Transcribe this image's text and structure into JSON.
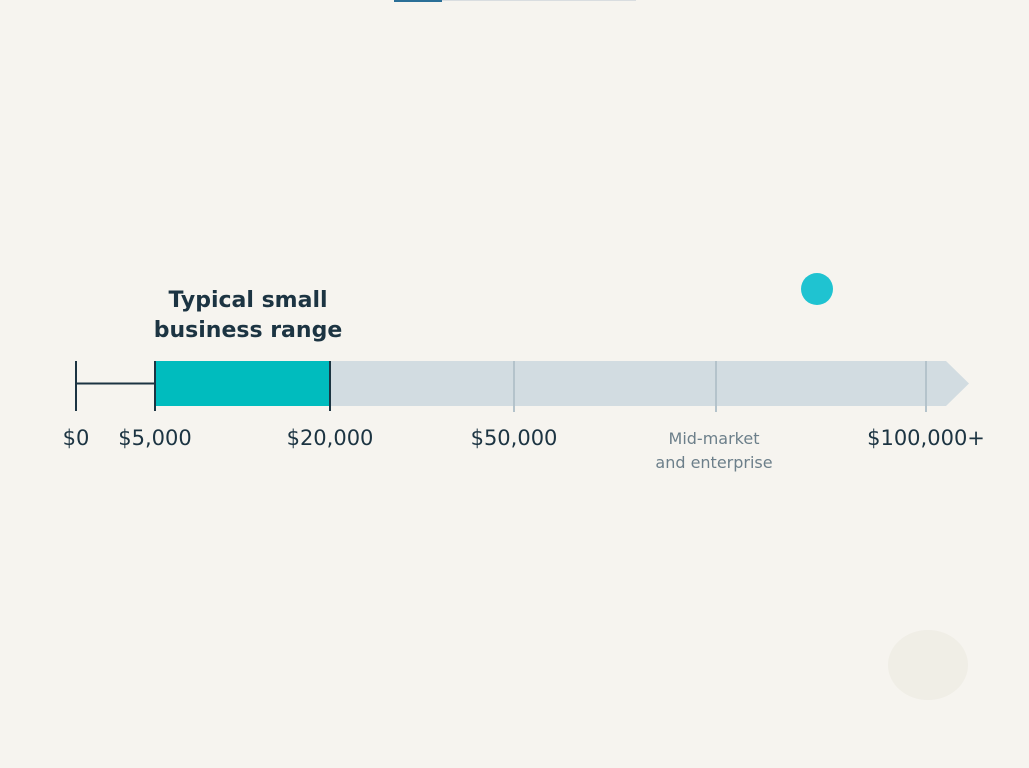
{
  "diagram": {
    "highlight_label": "Typical small\nbusiness range",
    "segment_note": "Mid-market\nand enterprise",
    "ticks": [
      {
        "value": 0,
        "label": "$0"
      },
      {
        "value": 5000,
        "label": "$5,000"
      },
      {
        "value": 20000,
        "label": "$20,000"
      },
      {
        "value": 50000,
        "label": "$50,000"
      },
      {
        "value": 100000,
        "label": "$100,000+"
      }
    ],
    "highlight_range": [
      5000,
      20000
    ],
    "colors": {
      "background": "#f6f4ef",
      "highlight": "#00bcbe",
      "track": "#d2dce1",
      "track_tick": "#b4c3cb",
      "bracket": "#1c3442",
      "text": "#1c3442",
      "note_text": "#6c7f8a",
      "marker_dot": "#1fc3d1",
      "active_tab": "#2a6f97"
    }
  }
}
